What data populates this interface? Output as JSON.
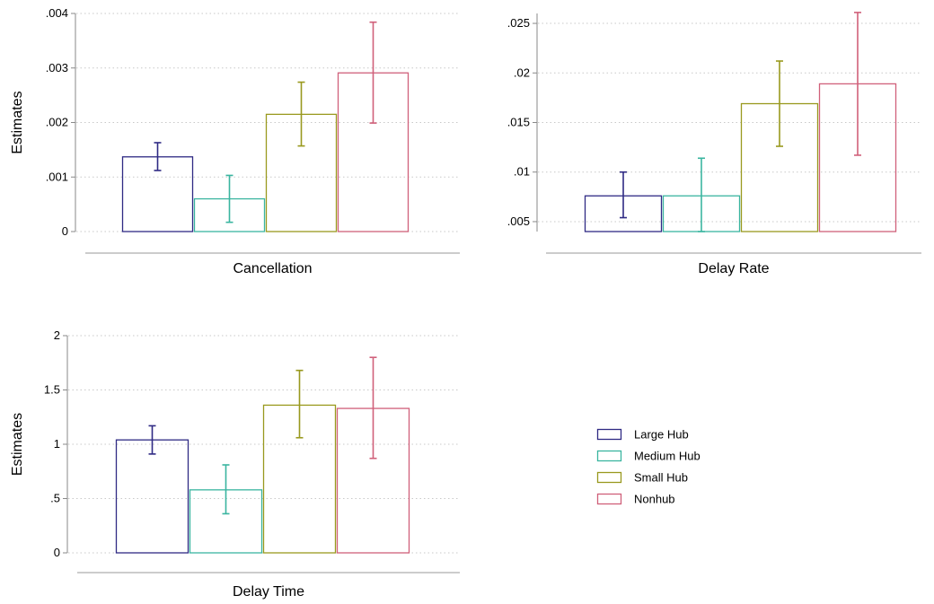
{
  "colors": {
    "Large Hub": "#2f2a84",
    "Medium Hub": "#3ab5a0",
    "Small Hub": "#99991e",
    "Nonhub": "#d0607a"
  },
  "legend": {
    "items": [
      "Large Hub",
      "Medium Hub",
      "Small Hub",
      "Nonhub"
    ]
  },
  "chart_data": [
    {
      "type": "bar",
      "title": "",
      "xlabel": "Cancellation",
      "ylabel": "Estimates",
      "ylim": [
        0,
        0.004
      ],
      "bar_base": 0,
      "ticks": [
        0,
        0.001,
        0.002,
        0.003,
        0.004
      ],
      "tick_labels": [
        "0",
        ".001",
        ".002",
        ".003",
        ".004"
      ],
      "grid": true,
      "series": [
        {
          "name": "Large Hub",
          "value": 0.00137,
          "ci": [
            0.00112,
            0.00163
          ]
        },
        {
          "name": "Medium Hub",
          "value": 0.0006,
          "ci": [
            0.00017,
            0.00103
          ]
        },
        {
          "name": "Small Hub",
          "value": 0.00215,
          "ci": [
            0.00157,
            0.00274
          ]
        },
        {
          "name": "Nonhub",
          "value": 0.00291,
          "ci": [
            0.00199,
            0.00384
          ]
        }
      ]
    },
    {
      "type": "bar",
      "title": "",
      "xlabel": "Delay Rate",
      "ylabel": "",
      "ylim": [
        0.004,
        0.026
      ],
      "bar_base": 0.004,
      "ticks": [
        0.005,
        0.01,
        0.015,
        0.02,
        0.025
      ],
      "tick_labels": [
        ".005",
        ".01",
        ".015",
        ".02",
        ".025"
      ],
      "grid": true,
      "series": [
        {
          "name": "Large Hub",
          "value": 0.0076,
          "ci": [
            0.0054,
            0.01
          ]
        },
        {
          "name": "Medium Hub",
          "value": 0.0076,
          "ci": [
            0.004,
            0.0114
          ]
        },
        {
          "name": "Small Hub",
          "value": 0.0169,
          "ci": [
            0.0126,
            0.0212
          ]
        },
        {
          "name": "Nonhub",
          "value": 0.0189,
          "ci": [
            0.0117,
            0.0261
          ]
        }
      ]
    },
    {
      "type": "bar",
      "title": "",
      "xlabel": "Delay Time",
      "ylabel": "Estimates",
      "ylim": [
        0,
        2
      ],
      "bar_base": 0,
      "ticks": [
        0,
        0.5,
        1,
        1.5,
        2
      ],
      "tick_labels": [
        "0",
        ".5",
        "1",
        "1.5",
        "2"
      ],
      "grid": true,
      "series": [
        {
          "name": "Large Hub",
          "value": 1.04,
          "ci": [
            0.91,
            1.17
          ]
        },
        {
          "name": "Medium Hub",
          "value": 0.58,
          "ci": [
            0.36,
            0.81
          ]
        },
        {
          "name": "Small Hub",
          "value": 1.36,
          "ci": [
            1.06,
            1.68
          ]
        },
        {
          "name": "Nonhub",
          "value": 1.33,
          "ci": [
            0.87,
            1.8
          ]
        }
      ]
    }
  ]
}
